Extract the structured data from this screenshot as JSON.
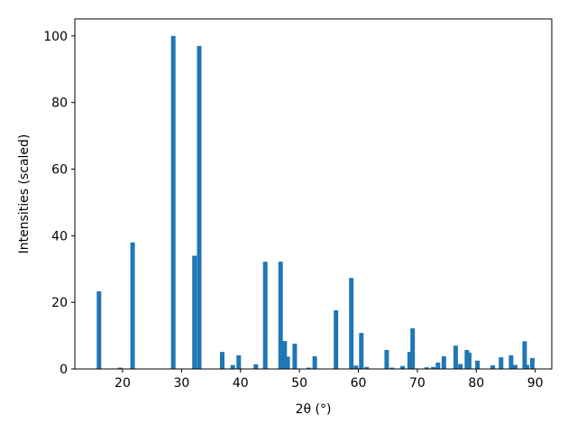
{
  "chart_data": {
    "type": "bar",
    "xlabel": "2θ (°)",
    "ylabel": "Intensities (scaled)",
    "x": [
      16.0,
      19.6,
      21.7,
      28.6,
      32.2,
      33.0,
      36.9,
      38.7,
      39.7,
      42.6,
      44.2,
      46.8,
      47.5,
      48.0,
      49.2,
      51.6,
      52.6,
      56.2,
      58.8,
      59.6,
      60.5,
      61.4,
      64.8,
      65.7,
      67.5,
      68.7,
      69.2,
      71.6,
      72.7,
      73.5,
      74.5,
      76.5,
      77.3,
      78.4,
      78.8,
      80.2,
      82.8,
      84.2,
      85.9,
      86.6,
      88.2,
      88.6,
      89.5
    ],
    "values": [
      23.3,
      0.4,
      38,
      100,
      34,
      97,
      5.1,
      1.2,
      4.1,
      1.4,
      32.2,
      32.2,
      8.4,
      3.7,
      7.6,
      0.4,
      3.8,
      17.6,
      27.3,
      1,
      10.8,
      0.6,
      5.7,
      0.4,
      0.9,
      5.1,
      12.2,
      0.5,
      0.6,
      1.9,
      3.8,
      7,
      1.5,
      5.7,
      4.9,
      2.5,
      1.1,
      3.5,
      4.1,
      1.2,
      8.3,
      1.2,
      3.3
    ],
    "color": "#1f77b4",
    "xlim": [
      11.9,
      92.8
    ],
    "xticks": [
      20,
      30,
      40,
      50,
      60,
      70,
      80,
      90
    ],
    "ylim": [
      0,
      105.1
    ],
    "yticks": [
      0,
      20,
      40,
      60,
      80,
      100
    ],
    "grid": false
  }
}
